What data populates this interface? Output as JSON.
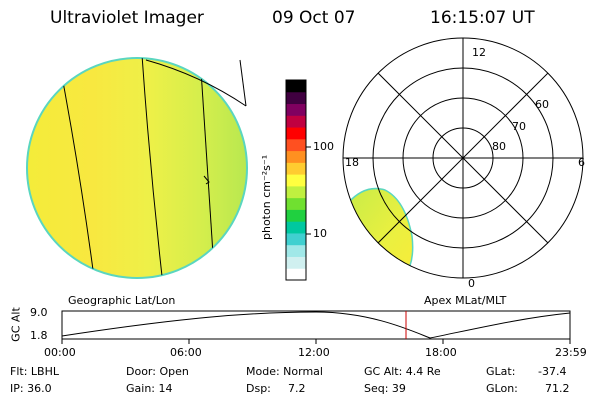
{
  "header": {
    "instrument": "Ultraviolet Imager",
    "date": "09 Oct 07",
    "time": "16:15:07 UT"
  },
  "colorbar": {
    "unit": "photon cm⁻²s⁻¹",
    "ticks": [
      {
        "value": 10,
        "label": "10"
      },
      {
        "value": 100,
        "label": "100"
      }
    ],
    "colors": [
      "#ffffff",
      "#d0f0f0",
      "#a0e8e8",
      "#40d0d0",
      "#00c8a0",
      "#20d040",
      "#70e030",
      "#c0f040",
      "#ffff40",
      "#ffcc30",
      "#ff9020",
      "#ff5020",
      "#ff0000",
      "#c00040",
      "#800060",
      "#400040",
      "#000000"
    ]
  },
  "polar_plot": {
    "mlt_labels": [
      "12",
      "18",
      "6",
      "0"
    ],
    "mlat_labels": [
      "60",
      "70",
      "80"
    ]
  },
  "panel_labels": {
    "left": "Geographic Lat/Lon",
    "right": "Apex MLat/MLT"
  },
  "timeline": {
    "ylabel": "GC Alt",
    "y_ticks": [
      "9.0",
      "1.8"
    ],
    "x_ticks": [
      "00:00",
      "06:00",
      "12:00",
      "18:00",
      "23:59"
    ],
    "current_time": "16:15:07",
    "colors": {
      "curve": "#000000",
      "marker": "#cc0000"
    }
  },
  "info": {
    "filter": "Flt: LBHL",
    "ip": "IP: 36.0",
    "door": "Door: Open",
    "gain": "Gain: 14",
    "mode": "Mode: Normal",
    "dsp_label": "Dsp:",
    "dsp_value": "7.2",
    "gc_alt": "GC Alt: 4.4 Re",
    "seq": "Seq: 39",
    "glat_label": "GLat:",
    "glat_value": "-37.4",
    "glon_label": "GLon:",
    "glon_value": "71.2"
  }
}
